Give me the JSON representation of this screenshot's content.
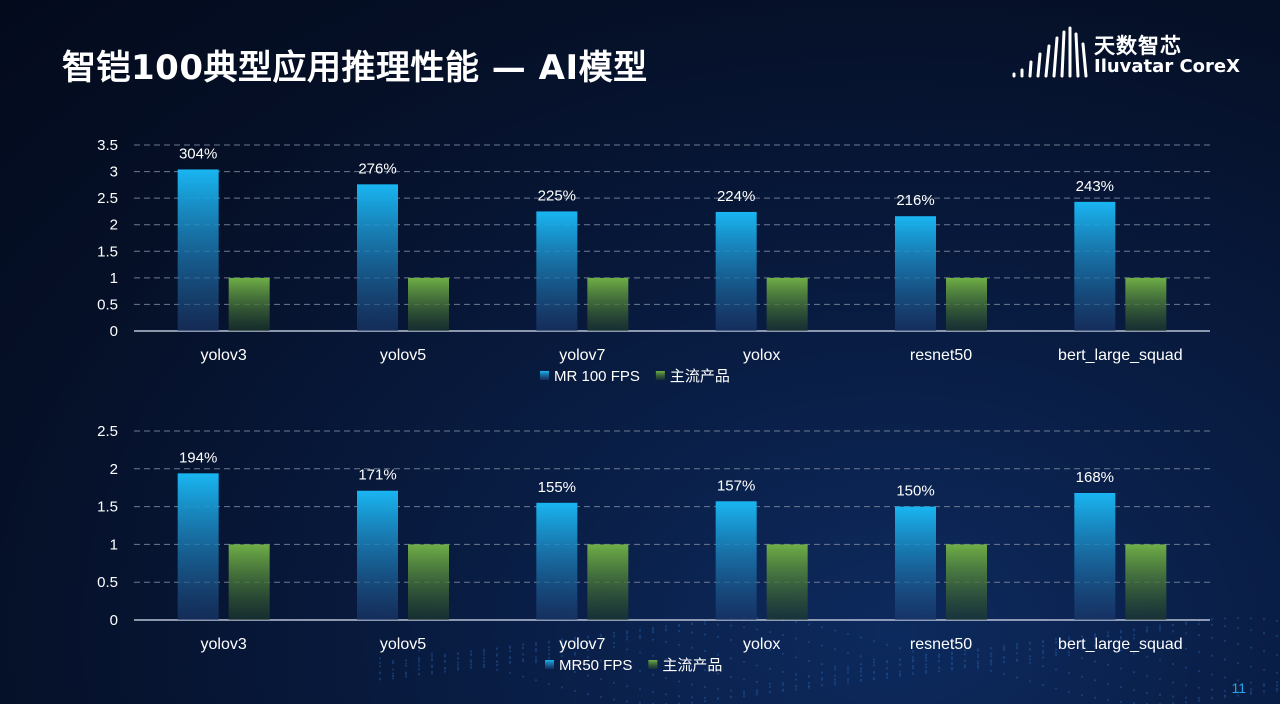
{
  "slide": {
    "title": "智铠100典型应用推理性能 — AI模型",
    "page_number": "11"
  },
  "logo": {
    "cn": "天数智芯",
    "en": "Iluvatar CoreX"
  },
  "colors": {
    "series_a_top": "#19b6f2",
    "series_a_bottom": "#1d3a6e",
    "series_b_top": "#6fae46",
    "series_b_bottom": "#1f3a2a",
    "grid": "#6d7a92",
    "axis": "#b8c2d4",
    "text": "#ffffff"
  },
  "chart_data": [
    {
      "type": "bar",
      "categories": [
        "yolov3",
        "yolov5",
        "yolov7",
        "yolox",
        "resnet50",
        "bert_large_squad"
      ],
      "series": [
        {
          "name": "MR 100 FPS",
          "values": [
            3.04,
            2.76,
            2.25,
            2.24,
            2.16,
            2.43
          ],
          "labels": [
            "304%",
            "276%",
            "225%",
            "224%",
            "216%",
            "243%"
          ]
        },
        {
          "name": "主流产品",
          "values": [
            1,
            1,
            1,
            1,
            1,
            1
          ]
        }
      ],
      "yticks": [
        "0",
        "0.5",
        "1",
        "1.5",
        "2",
        "2.5",
        "3",
        "3.5"
      ],
      "ylim": [
        0,
        3.5
      ],
      "grid": true,
      "legend": "bottom"
    },
    {
      "type": "bar",
      "categories": [
        "yolov3",
        "yolov5",
        "yolov7",
        "yolox",
        "resnet50",
        "bert_large_squad"
      ],
      "series": [
        {
          "name": "MR50 FPS",
          "values": [
            1.94,
            1.71,
            1.55,
            1.57,
            1.5,
            1.68
          ],
          "labels": [
            "194%",
            "171%",
            "155%",
            "157%",
            "150%",
            "168%"
          ]
        },
        {
          "name": "主流产品",
          "values": [
            1,
            1,
            1,
            1,
            1,
            1
          ]
        }
      ],
      "yticks": [
        "0",
        "0.5",
        "1",
        "1.5",
        "2",
        "2.5"
      ],
      "ylim": [
        0,
        2.5
      ],
      "grid": true,
      "legend": "bottom"
    }
  ]
}
